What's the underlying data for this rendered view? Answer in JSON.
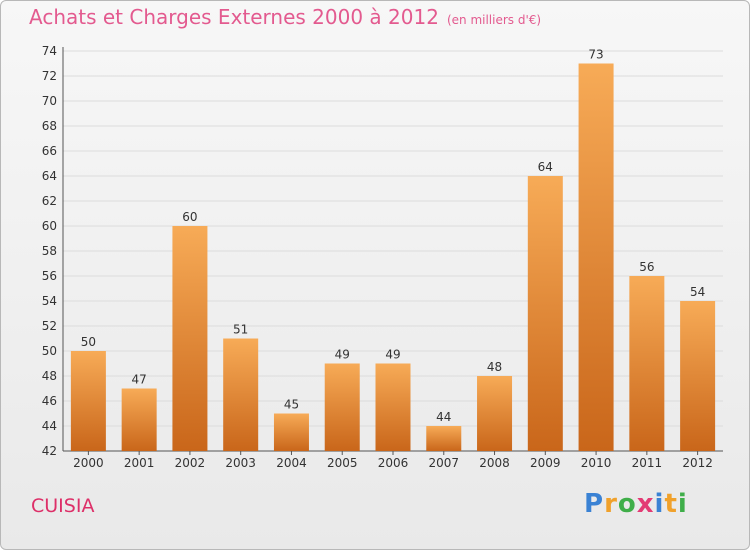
{
  "chart_data": {
    "type": "bar",
    "title": "Achats et Charges Externes 2000 à 2012",
    "unit_label": "(en milliers d'€)",
    "categories": [
      "2000",
      "2001",
      "2002",
      "2003",
      "2004",
      "2005",
      "2006",
      "2007",
      "2008",
      "2009",
      "2010",
      "2011",
      "2012"
    ],
    "values": [
      50,
      47,
      60,
      51,
      45,
      49,
      49,
      44,
      48,
      64,
      73,
      56,
      54
    ],
    "ylim": [
      42,
      74
    ],
    "yticks": [
      42,
      44,
      46,
      48,
      50,
      52,
      54,
      56,
      58,
      60,
      62,
      64,
      66,
      68,
      70,
      72,
      74
    ],
    "grid": true,
    "bar_color": "#f0a04b"
  },
  "footer": {
    "place": "CUISIA",
    "logo_letters": [
      "P",
      "r",
      "o",
      "x",
      "i",
      "t",
      "i"
    ]
  }
}
